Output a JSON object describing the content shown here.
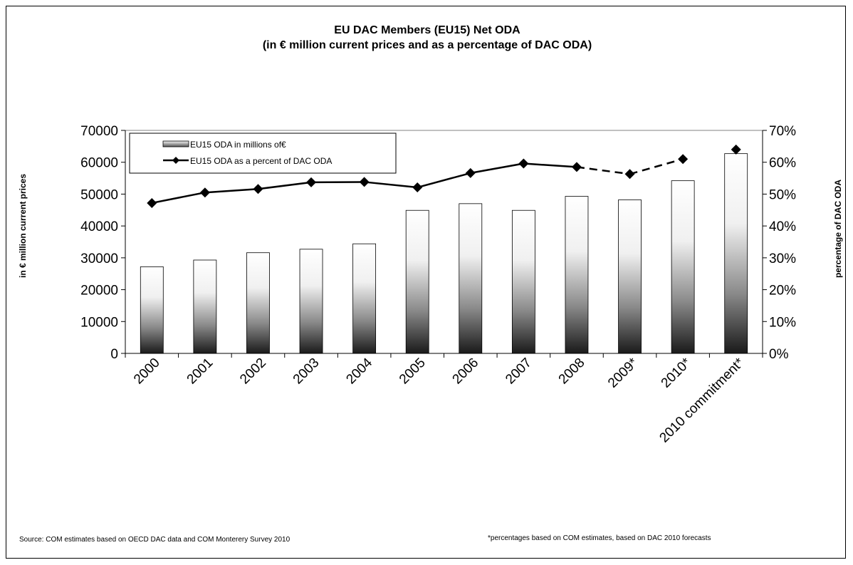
{
  "chart_data": {
    "type": "bar",
    "title": "EU DAC Members (EU15) Net ODA",
    "subtitle": "(in € million current prices and as a percentage of DAC ODA)",
    "categories": [
      "2000",
      "2001",
      "2002",
      "2003",
      "2004",
      "2005",
      "2006",
      "2007",
      "2008",
      "2009*",
      "2010*",
      "2010 commitment*"
    ],
    "series": [
      {
        "name": "EU15 ODA in millions of€",
        "type": "bar",
        "axis": "left",
        "values": [
          27200,
          29300,
          31600,
          32700,
          34400,
          44900,
          47000,
          44900,
          49300,
          48200,
          54200,
          62700
        ]
      },
      {
        "name": "EU15 ODA as a percent of DAC ODA",
        "type": "line",
        "axis": "right",
        "unit": "percent",
        "values": [
          47.2,
          50.5,
          51.6,
          53.7,
          53.8,
          52.1,
          56.6,
          59.6,
          58.5,
          56.3,
          61.0,
          64.0
        ],
        "line_style": [
          "solid",
          "solid",
          "solid",
          "solid",
          "solid",
          "solid",
          "solid",
          "solid",
          "dashed",
          "dashed",
          null,
          null
        ]
      }
    ],
    "ylabel": "in € million current prices",
    "ylim": [
      0,
      70000
    ],
    "yticks": [
      "0",
      "10000",
      "20000",
      "30000",
      "40000",
      "50000",
      "60000",
      "70000"
    ],
    "y2label": "percentage  of DAC ODA",
    "y2lim": [
      0,
      70
    ],
    "y2ticks": [
      "0%",
      "10%",
      "20%",
      "30%",
      "40%",
      "50%",
      "60%",
      "70%"
    ],
    "legend_position": "top-left",
    "grid": false
  },
  "footnotes": {
    "source": "Source: COM estimates based on OECD DAC data and COM Monterery Survey 2010",
    "note": "*percentages based on COM estimates, based on DAC 2010 forecasts"
  }
}
